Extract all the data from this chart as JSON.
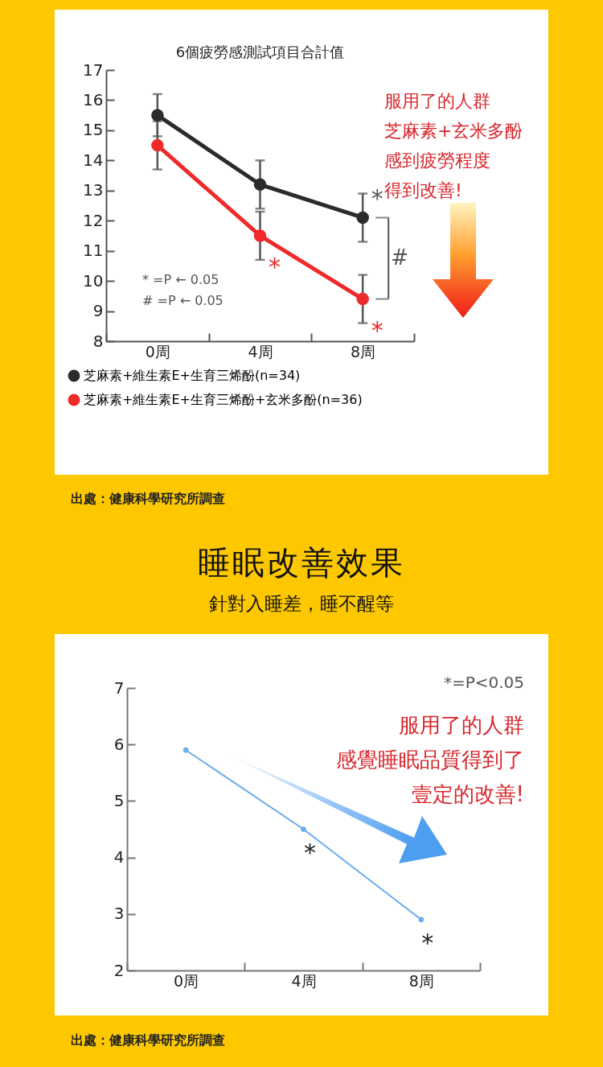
{
  "chart_data": [
    {
      "type": "line",
      "title": "6個疲勞感測試項目合計值",
      "categories": [
        "0周",
        "4周",
        "8周"
      ],
      "ylim": [
        8,
        17
      ],
      "yticks": [
        8,
        9,
        10,
        11,
        12,
        13,
        14,
        15,
        16,
        17
      ],
      "grid": false,
      "legend": "bottom",
      "marker": "circle",
      "line_style": "solid",
      "series": [
        {
          "name": "芝麻素+維生素E+生育三烯酚(n=34)",
          "color": "#2b2b2b",
          "values": [
            15.5,
            13.2,
            12.1
          ],
          "errors": [
            0.7,
            0.8,
            0.8
          ]
        },
        {
          "name": "芝麻素+維生素E+生育三烯酚+玄米多酚(n=36)",
          "color": "#ee2a2a",
          "values": [
            14.5,
            11.5,
            9.4
          ],
          "errors": [
            0.8,
            0.8,
            0.8
          ]
        }
      ],
      "annotations": [
        {
          "text": "*",
          "x": "8周",
          "y": 12.1
        },
        {
          "text": "*",
          "x": "4周",
          "y": 11.5
        },
        {
          "text": "*",
          "x": "8周",
          "y": 9.4
        },
        "#",
        "* =P ← 0.05",
        "# =P ← 0.05",
        "服用了的人群芝麻素+玄米多酚感到疲勞程度得到改善!",
        "出處：健康科學研究所調查"
      ]
    },
    {
      "type": "line",
      "title": "睡眠改善效果",
      "subtitle": "針對入睡差，睡不醒等",
      "categories": [
        "0周",
        "4周",
        "8周"
      ],
      "ylim": [
        2,
        7
      ],
      "yticks": [
        2,
        3,
        4,
        5,
        6,
        7
      ],
      "grid": false,
      "legend": false,
      "marker": "circle",
      "line_style": "solid",
      "series": [
        {
          "color": "#6aaeea",
          "values": [
            5.9,
            4.5,
            2.9
          ]
        }
      ],
      "annotations": [
        {
          "text": "*",
          "x": "4周",
          "y": 4.5
        },
        {
          "text": "*",
          "x": "8周",
          "y": 2.9
        },
        "*=P<0.05",
        "服用了的人群感覺睡眠品質得到了壹定的改善!",
        "出處：健康科學研究所調查"
      ]
    }
  ]
}
